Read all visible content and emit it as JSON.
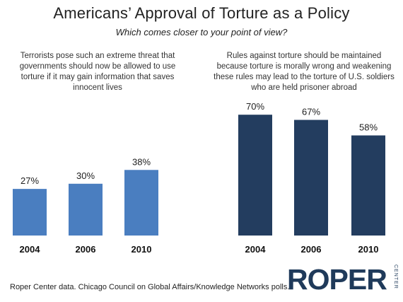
{
  "title": "Americans’ Approval of Torture as a Policy",
  "subtitle": "Which comes closer to your point of view?",
  "source": "Roper Center data. Chicago Council on Global Affairs/Knowledge Networks polls.",
  "logo": {
    "main": "ROPER",
    "side": "CENTER"
  },
  "colors": {
    "left_bars": "#4a7ec0",
    "right_bars": "#233d5f"
  },
  "chart_data": [
    {
      "type": "bar",
      "title": "Terrorists pose such an extreme threat that governments should now be allowed to use torture if it may gain information that saves innocent lives",
      "categories": [
        "2004",
        "2006",
        "2010"
      ],
      "values": [
        27,
        30,
        38
      ],
      "value_labels": [
        "27%",
        "30%",
        "38%"
      ],
      "ylim": [
        0,
        100
      ]
    },
    {
      "type": "bar",
      "title": "Rules against torture should be maintained because torture is morally wrong and weakening these rules may lead to the torture of U.S. soldiers who are held prisoner abroad",
      "categories": [
        "2004",
        "2006",
        "2010"
      ],
      "values": [
        70,
        67,
        58
      ],
      "value_labels": [
        "70%",
        "67%",
        "58%"
      ],
      "ylim": [
        0,
        100
      ]
    }
  ]
}
